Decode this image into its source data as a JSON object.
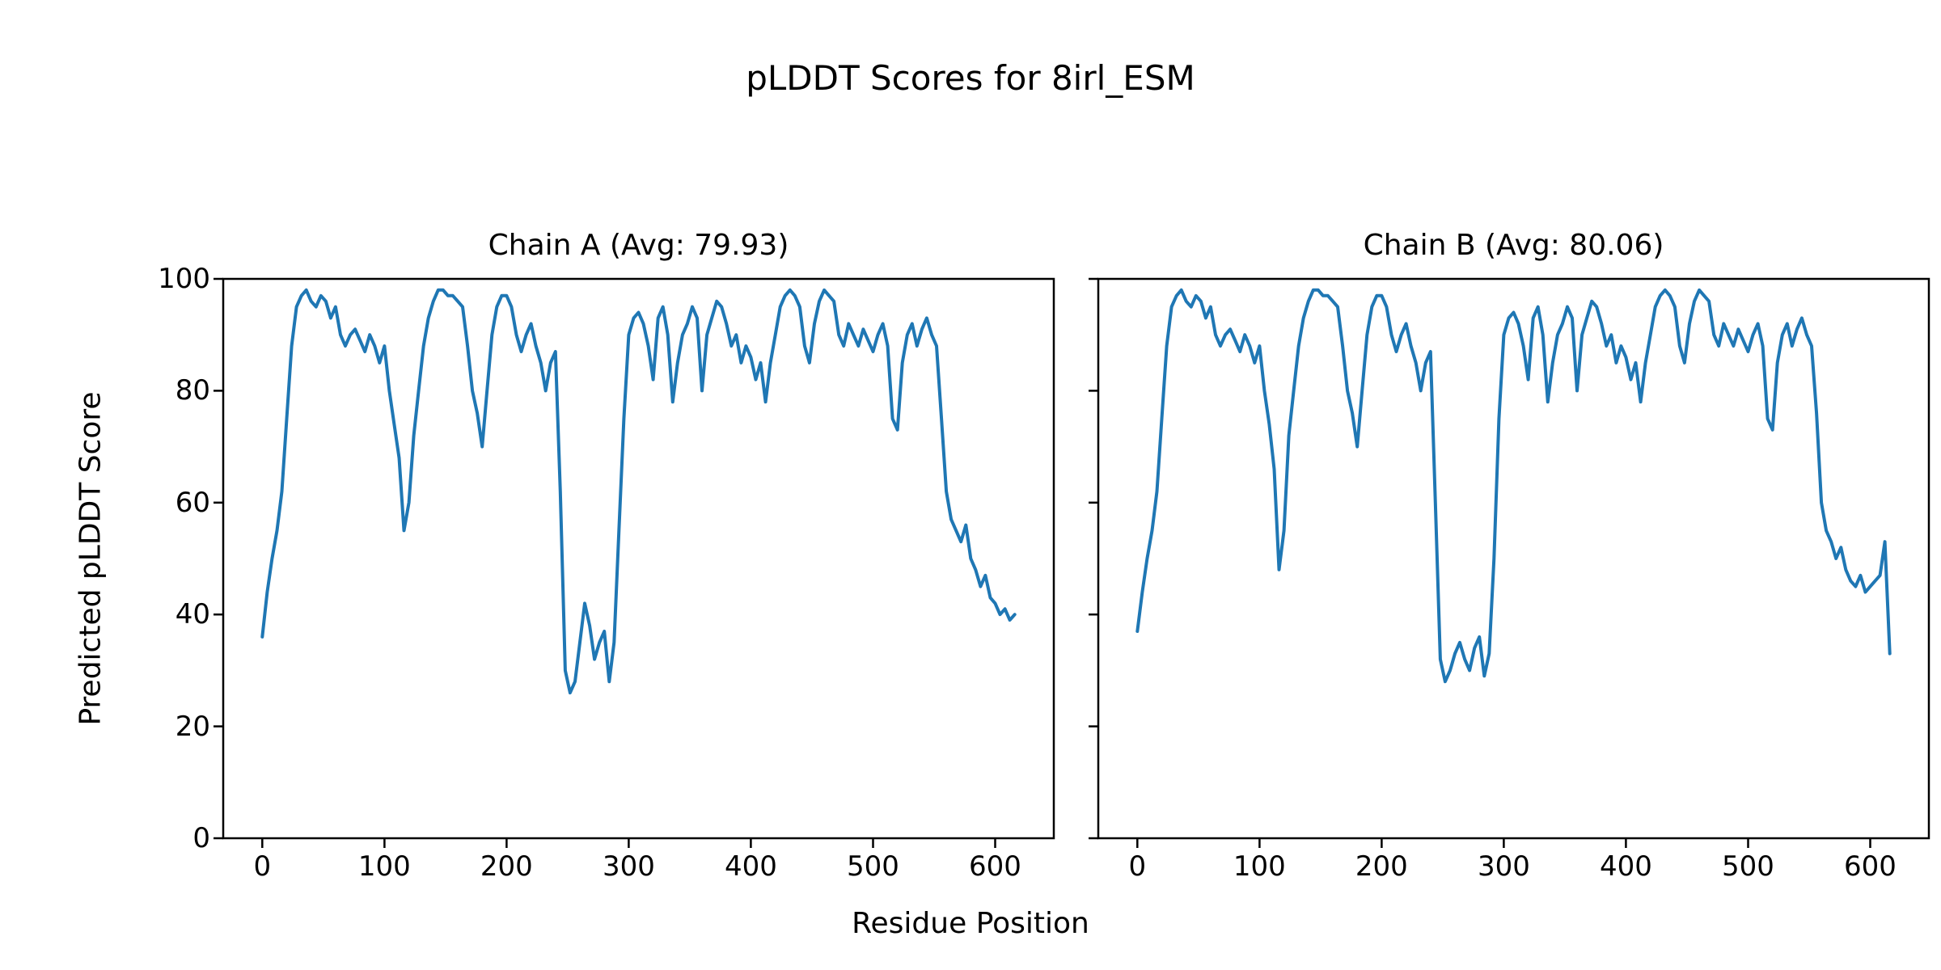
{
  "figure": {
    "title": "pLDDT Scores for 8irl_ESM",
    "xlabel": "Residue Position",
    "ylabel": "Predicted pLDDT Score",
    "line_color": "#1f77b4",
    "background": "#ffffff"
  },
  "chart_data": [
    {
      "type": "line",
      "title": "Chain A (Avg: 79.93)",
      "chain": "A",
      "avg": 79.93,
      "xlim": [
        -32,
        648
      ],
      "ylim": [
        0,
        100
      ],
      "xticks": [
        0,
        100,
        200,
        300,
        400,
        500,
        600
      ],
      "yticks": [
        0,
        20,
        40,
        60,
        80,
        100
      ],
      "show_ytick_labels": true,
      "x_start": 0,
      "x_step": 4,
      "values": [
        36,
        44,
        50,
        55,
        62,
        75,
        88,
        95,
        97,
        98,
        96,
        95,
        97,
        96,
        93,
        95,
        90,
        88,
        90,
        91,
        89,
        87,
        90,
        88,
        85,
        88,
        80,
        74,
        68,
        55,
        60,
        72,
        80,
        88,
        93,
        96,
        98,
        98,
        97,
        97,
        96,
        95,
        88,
        80,
        76,
        70,
        80,
        90,
        95,
        97,
        97,
        95,
        90,
        87,
        90,
        92,
        88,
        85,
        80,
        85,
        87,
        62,
        30,
        26,
        28,
        35,
        42,
        38,
        32,
        35,
        37,
        28,
        35,
        55,
        75,
        90,
        93,
        94,
        92,
        88,
        82,
        93,
        95,
        90,
        78,
        85,
        90,
        92,
        95,
        93,
        80,
        90,
        93,
        96,
        95,
        92,
        88,
        90,
        85,
        88,
        86,
        82,
        85,
        78,
        85,
        90,
        95,
        97,
        98,
        97,
        95,
        88,
        85,
        92,
        96,
        98,
        97,
        96,
        90,
        88,
        92,
        90,
        88,
        91,
        89,
        87,
        90,
        92,
        88,
        75,
        73,
        85,
        90,
        92,
        88,
        91,
        93,
        90,
        88,
        75,
        62,
        57,
        55,
        53,
        56,
        50,
        48,
        45,
        47,
        43,
        42,
        40,
        41,
        39,
        40
      ]
    },
    {
      "type": "line",
      "title": "Chain B (Avg: 80.06)",
      "chain": "B",
      "avg": 80.06,
      "xlim": [
        -32,
        648
      ],
      "ylim": [
        0,
        100
      ],
      "xticks": [
        0,
        100,
        200,
        300,
        400,
        500,
        600
      ],
      "yticks": [
        0,
        20,
        40,
        60,
        80,
        100
      ],
      "show_ytick_labels": false,
      "x_start": 0,
      "x_step": 4,
      "values": [
        37,
        44,
        50,
        55,
        62,
        75,
        88,
        95,
        97,
        98,
        96,
        95,
        97,
        96,
        93,
        95,
        90,
        88,
        90,
        91,
        89,
        87,
        90,
        88,
        85,
        88,
        80,
        74,
        66,
        48,
        55,
        72,
        80,
        88,
        93,
        96,
        98,
        98,
        97,
        97,
        96,
        95,
        88,
        80,
        76,
        70,
        80,
        90,
        95,
        97,
        97,
        95,
        90,
        87,
        90,
        92,
        88,
        85,
        80,
        85,
        87,
        60,
        32,
        28,
        30,
        33,
        35,
        32,
        30,
        34,
        36,
        29,
        33,
        50,
        75,
        90,
        93,
        94,
        92,
        88,
        82,
        93,
        95,
        90,
        78,
        85,
        90,
        92,
        95,
        93,
        80,
        90,
        93,
        96,
        95,
        92,
        88,
        90,
        85,
        88,
        86,
        82,
        85,
        78,
        85,
        90,
        95,
        97,
        98,
        97,
        95,
        88,
        85,
        92,
        96,
        98,
        97,
        96,
        90,
        88,
        92,
        90,
        88,
        91,
        89,
        87,
        90,
        92,
        88,
        75,
        73,
        85,
        90,
        92,
        88,
        91,
        93,
        90,
        88,
        76,
        60,
        55,
        53,
        50,
        52,
        48,
        46,
        45,
        47,
        44,
        45,
        46,
        47,
        53,
        33
      ]
    }
  ]
}
